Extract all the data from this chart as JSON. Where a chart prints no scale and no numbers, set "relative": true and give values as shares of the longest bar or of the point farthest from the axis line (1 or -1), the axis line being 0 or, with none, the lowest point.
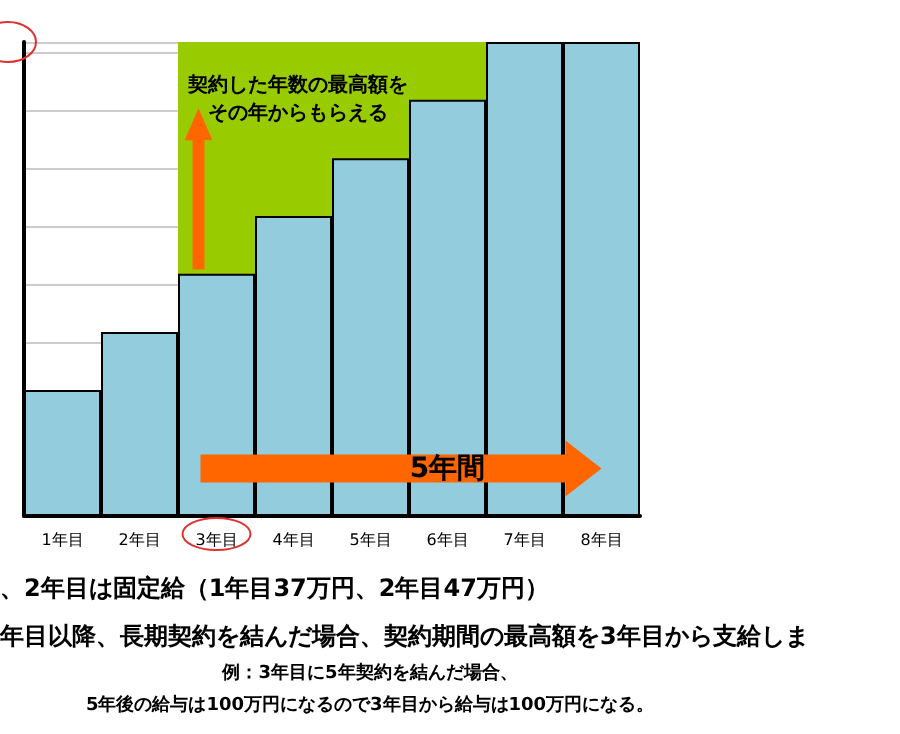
{
  "chart_data": {
    "type": "bar",
    "relative": true,
    "categories": [
      "1年目",
      "2年目",
      "3年目",
      "4年目",
      "5年目",
      "6年目",
      "7年目",
      "8年目"
    ],
    "values": [
      0.266,
      0.388,
      0.511,
      0.633,
      0.755,
      0.878,
      1,
      1
    ],
    "color": "#93cddd",
    "grid": "y",
    "bands": [
      {
        "axis": "x",
        "from": "3年目",
        "to": "6年目",
        "label": "契約した年数の最高額をその年からもらえる",
        "color": "#99cc00"
      }
    ],
    "annotations": [
      "5年間",
      "、2年目は固定給（1年目37万円、2年目47万円）",
      "年目以降、長期契約を結んだ場合、契約期間の最高額を3年目から支給しま",
      "例：3年目に5年契約を結んだ場合、",
      "5年後の給与は100万円になるので3年目から給与は100万円になる。"
    ]
  }
}
